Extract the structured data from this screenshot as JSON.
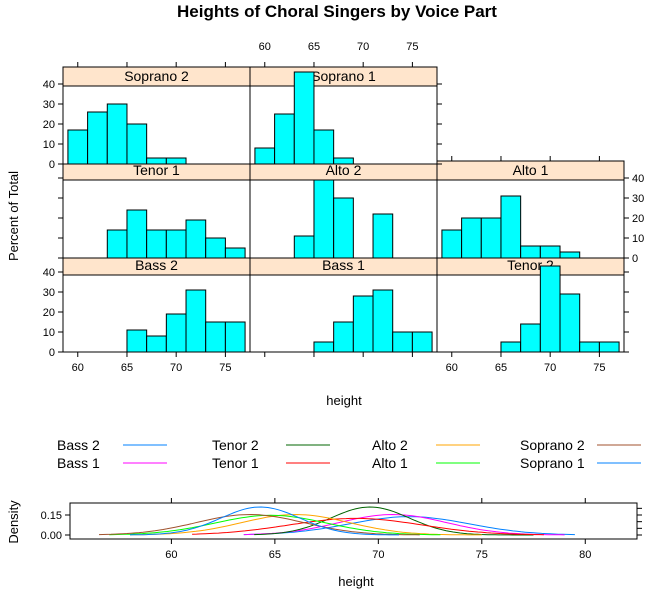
{
  "chart_data": [
    {
      "type": "bar",
      "subtype": "trellis-histogram",
      "title": "Heights of Choral Singers by Voice Part",
      "xlabel": "height",
      "ylabel": "Percent of Total",
      "xlim": [
        58.5,
        77.5
      ],
      "ylim": [
        0,
        47
      ],
      "bin_edges": [
        59,
        61,
        63,
        65,
        67,
        69,
        71,
        73,
        75,
        77
      ],
      "x_ticks": [
        "60",
        "65",
        "70",
        "75"
      ],
      "y_ticks": [
        "0",
        "10",
        "20",
        "30",
        "40"
      ],
      "bar_color": "#00FFFF",
      "strip_color": "#FFE5CC",
      "panels": [
        {
          "name": "Bass 2",
          "values": [
            0,
            0,
            0,
            11,
            8,
            19,
            31,
            15,
            15
          ]
        },
        {
          "name": "Bass 1",
          "values": [
            0,
            0,
            0,
            5,
            15,
            28,
            31,
            10,
            10
          ]
        },
        {
          "name": "Tenor 2",
          "values": [
            0,
            0,
            0,
            5,
            14,
            43,
            29,
            5,
            5
          ]
        },
        {
          "name": "Tenor 1",
          "values": [
            0,
            0,
            14,
            24,
            14,
            14,
            19,
            10,
            5
          ]
        },
        {
          "name": "Alto 2",
          "values": [
            0,
            0,
            11,
            39,
            30,
            0,
            22,
            0,
            0
          ]
        },
        {
          "name": "Alto 1",
          "values": [
            14,
            20,
            20,
            31,
            6,
            6,
            3,
            0,
            0
          ]
        },
        {
          "name": "Soprano 2",
          "values": [
            17,
            26,
            30,
            20,
            3,
            3,
            0,
            0,
            0
          ]
        },
        {
          "name": "Soprano 1",
          "values": [
            8,
            25,
            46,
            17,
            3,
            0,
            0,
            0,
            0
          ]
        }
      ]
    },
    {
      "type": "line",
      "subtype": "density",
      "xlabel": "height",
      "ylabel": "Density",
      "xlim": [
        55.1,
        82.5
      ],
      "ylim": [
        -0.03,
        0.24
      ],
      "x_ticks": [
        "60",
        "65",
        "70",
        "75",
        "80"
      ],
      "y_ticks": [
        "0.00",
        "0.15"
      ],
      "series": [
        {
          "name": "Bass 2",
          "color": "#0080FF",
          "mean": 71.5,
          "sd": 2.9,
          "range": [
            63.5,
            79.5
          ]
        },
        {
          "name": "Bass 1",
          "color": "#FF00FF",
          "mean": 70.7,
          "sd": 2.6,
          "range": [
            63.5,
            79
          ]
        },
        {
          "name": "Tenor 2",
          "color": "#006400",
          "mean": 69.6,
          "sd": 1.9,
          "range": [
            64,
            77.5
          ]
        },
        {
          "name": "Tenor 1",
          "color": "#FF0000",
          "mean": 68.9,
          "sd": 3.2,
          "range": [
            61,
            78
          ]
        },
        {
          "name": "Alto 2",
          "color": "#FFA500",
          "mean": 66.0,
          "sd": 2.6,
          "range": [
            58,
            75
          ]
        },
        {
          "name": "Alto 1",
          "color": "#00FF00",
          "mean": 64.8,
          "sd": 2.7,
          "range": [
            57,
            73
          ]
        },
        {
          "name": "Soprano 2",
          "color": "#A0522D",
          "mean": 63.8,
          "sd": 2.6,
          "range": [
            56.5,
            72
          ]
        },
        {
          "name": "Soprano 1",
          "color": "#0080FF",
          "mean": 64.3,
          "sd": 1.9,
          "range": [
            58,
            71
          ]
        }
      ]
    }
  ]
}
